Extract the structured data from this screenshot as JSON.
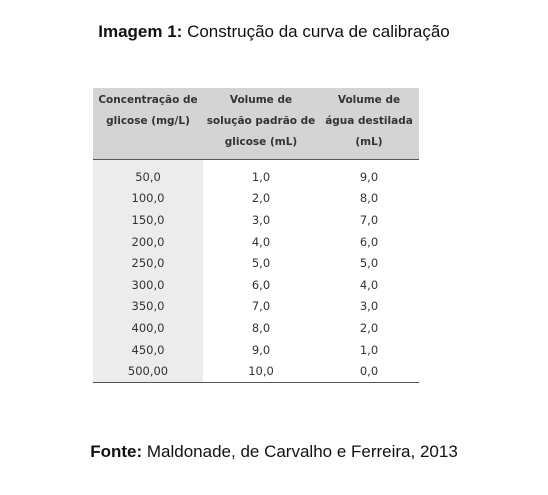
{
  "header": {
    "label": "Imagem 1:",
    "title": "Construção da curva de calibração"
  },
  "table": {
    "columns": [
      "Concentração de glicose (mg/L)",
      "Volume de solução padrão de glicose (mL)",
      "Volume de água destilada (mL)"
    ],
    "rows": [
      [
        "50,0",
        "1,0",
        "9,0"
      ],
      [
        "100,0",
        "2,0",
        "8,0"
      ],
      [
        "150,0",
        "3,0",
        "7,0"
      ],
      [
        "200,0",
        "4,0",
        "6,0"
      ],
      [
        "250,0",
        "5,0",
        "5,0"
      ],
      [
        "300,0",
        "6,0",
        "4,0"
      ],
      [
        "350,0",
        "7,0",
        "3,0"
      ],
      [
        "400,0",
        "8,0",
        "2,0"
      ],
      [
        "450,0",
        "9,0",
        "1,0"
      ],
      [
        "500,00",
        "10,0",
        "0,0"
      ]
    ]
  },
  "footer": {
    "label": "Fonte:",
    "text": "Maldonade, de Carvalho e Ferreira, 2013"
  }
}
